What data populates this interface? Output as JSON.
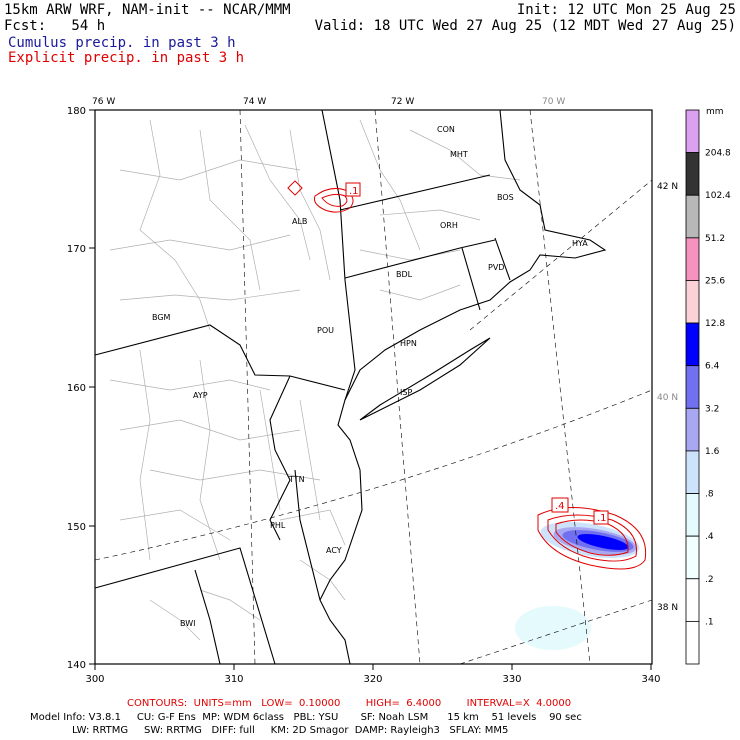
{
  "header": {
    "model": "15km ARW WRF, NAM-init -- NCAR/MMM",
    "init": "Init: 12 UTC Mon 25 Aug 25",
    "fcst": "Fcst:   54 h",
    "valid": "Valid: 18 UTC Wed 27 Aug 25 (12 MDT Wed 27 Aug 25)",
    "cumulus_label": "Cumulus precip. in past 3 h",
    "explicit_label": "Explicit precip. in past 3 h"
  },
  "axes": {
    "x_ticks": [
      "300",
      "310",
      "320",
      "330",
      "340"
    ],
    "y_ticks": [
      "140",
      "150",
      "160",
      "170",
      "180"
    ],
    "lon_labels": [
      "76 W",
      "74 W",
      "72 W",
      "70 W"
    ],
    "lat_labels": [
      "42 N",
      "40 N",
      "38 N"
    ]
  },
  "stations": [
    "CON",
    "MHT",
    "BOS",
    "ORH",
    "HYA",
    "PVD",
    "BDL",
    "ALB",
    "BGM",
    "POU",
    "HPN",
    "ISP",
    "AYP",
    "TTN",
    "PHL",
    "ACY",
    "BWI"
  ],
  "colorbar": {
    "unit": "mm",
    "levels": [
      "204.8",
      "102.4",
      "51.2",
      "25.6",
      "12.8",
      "6.4",
      "3.2",
      "1.6",
      ".8",
      ".4",
      ".2",
      ".1"
    ],
    "colors": [
      "#dba0f0",
      "#333333",
      "#b8b8b8",
      "#f592bd",
      "#fbd0d6",
      "#0000ff",
      "#7070f0",
      "#a8a8f2",
      "#cde2fb",
      "#e4fafc",
      "#f2ffff",
      "#ffffff",
      "#ffffff"
    ]
  },
  "contour_labels": [
    ".1",
    ".4",
    ".1"
  ],
  "footer": {
    "contours": "CONTOURS:  UNITS=mm   LOW=  0.10000        HIGH=  6.4000        INTERVAL=X  4.0000",
    "model_info_1": "Model Info: V3.8.1     CU: G-F Ens  MP: WDM 6class   PBL: YSU       SF: Noah LSM      15 km    51 levels    90 sec",
    "model_info_2": "LW: RRTMG     SW: RRTMG   DIFF: full     KM: 2D Smagor  DAMP: Rayleigh3   SFLAY: MM5"
  },
  "colors": {
    "cumulus_text": "#1a1a9a",
    "explicit_text": "#e00000",
    "contour": "#e00000"
  }
}
